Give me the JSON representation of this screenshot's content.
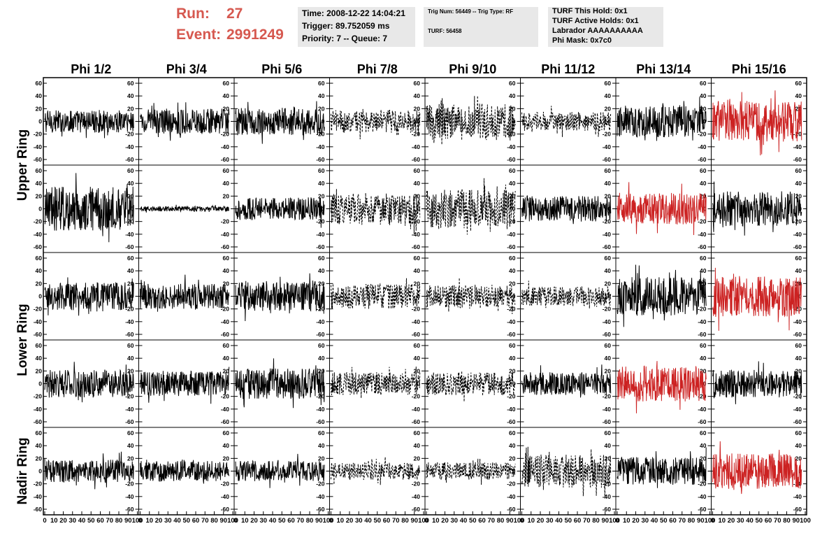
{
  "header": {
    "run_label": "Run:",
    "run_value": "27",
    "event_label": "Event:",
    "event_value": "2991249",
    "time_lines": [
      "Time: 2008-12-22 14:04:21",
      "Trigger: 89.752059 ms",
      "Priority: 7 -- Queue: 7"
    ],
    "trig_lines": [
      "Trig Num: 56449 -- Trig Type: RF",
      "TURF: 56458"
    ],
    "turf_lines": [
      "TURF This Hold: 0x1",
      "TURF Active Holds: 0x1",
      "Labrador AAAAAAAAAA",
      "Phi Mask: 0x7c0"
    ],
    "colors": {
      "run_text": "#d6584f",
      "info_bg": "#e8e8e8"
    }
  },
  "chart_data": {
    "type": "line",
    "columns": [
      "Phi 1/2",
      "Phi 3/4",
      "Phi 5/6",
      "Phi 7/8",
      "Phi 9/10",
      "Phi 11/12",
      "Phi 13/14",
      "Phi 15/16"
    ],
    "ring_labels": [
      {
        "label": "Upper Ring",
        "rows": [
          0,
          1
        ]
      },
      {
        "label": "Lower Ring",
        "rows": [
          2,
          3
        ]
      },
      {
        "label": "Nadir Ring",
        "rows": [
          4
        ]
      }
    ],
    "rows": 5,
    "xlim": [
      0,
      100
    ],
    "x_ticks": [
      0,
      10,
      20,
      30,
      40,
      50,
      60,
      70,
      80,
      90,
      100
    ],
    "x_tick_labels": [
      "0",
      "10",
      "20",
      "30",
      "40",
      "50",
      "60",
      "70",
      "80",
      "90",
      "100"
    ],
    "ylim": [
      -60,
      60
    ],
    "y_ticks": [
      -60,
      -40,
      -20,
      0,
      20,
      40,
      60
    ],
    "y_tick_labels": [
      "-60",
      "-40",
      "-20",
      "0",
      "20",
      "40",
      "60"
    ],
    "series_colors": {
      "normal": "#000000",
      "highlighted": "#cc2222"
    },
    "series_styles": [
      "solid",
      "dashed"
    ],
    "panels": [
      {
        "row": 0,
        "col": 0,
        "style": "solid",
        "color": "normal",
        "amplitude": 18
      },
      {
        "row": 0,
        "col": 1,
        "style": "solid",
        "color": "normal",
        "amplitude": 20
      },
      {
        "row": 0,
        "col": 2,
        "style": "solid",
        "color": "normal",
        "amplitude": 22
      },
      {
        "row": 0,
        "col": 3,
        "style": "dashed",
        "color": "normal",
        "amplitude": 18
      },
      {
        "row": 0,
        "col": 4,
        "style": "dashed",
        "color": "normal",
        "amplitude": 30
      },
      {
        "row": 0,
        "col": 5,
        "style": "dashed",
        "color": "normal",
        "amplitude": 15
      },
      {
        "row": 0,
        "col": 6,
        "style": "solid",
        "color": "normal",
        "amplitude": 25
      },
      {
        "row": 0,
        "col": 7,
        "style": "solid",
        "color": "highlighted",
        "amplitude": 32
      },
      {
        "row": 1,
        "col": 0,
        "style": "solid",
        "color": "normal",
        "amplitude": 35
      },
      {
        "row": 1,
        "col": 1,
        "style": "solid",
        "color": "normal",
        "amplitude": 4
      },
      {
        "row": 1,
        "col": 2,
        "style": "solid",
        "color": "normal",
        "amplitude": 18
      },
      {
        "row": 1,
        "col": 3,
        "style": "dashed",
        "color": "normal",
        "amplitude": 25
      },
      {
        "row": 1,
        "col": 4,
        "style": "dashed",
        "color": "normal",
        "amplitude": 30
      },
      {
        "row": 1,
        "col": 5,
        "style": "solid",
        "color": "normal",
        "amplitude": 20
      },
      {
        "row": 1,
        "col": 6,
        "style": "solid",
        "color": "highlighted",
        "amplitude": 25
      },
      {
        "row": 1,
        "col": 7,
        "style": "solid",
        "color": "normal",
        "amplitude": 28
      },
      {
        "row": 2,
        "col": 0,
        "style": "solid",
        "color": "normal",
        "amplitude": 22
      },
      {
        "row": 2,
        "col": 1,
        "style": "solid",
        "color": "normal",
        "amplitude": 20
      },
      {
        "row": 2,
        "col": 2,
        "style": "solid",
        "color": "normal",
        "amplitude": 24
      },
      {
        "row": 2,
        "col": 3,
        "style": "dashed",
        "color": "normal",
        "amplitude": 20
      },
      {
        "row": 2,
        "col": 4,
        "style": "dashed",
        "color": "normal",
        "amplitude": 18
      },
      {
        "row": 2,
        "col": 5,
        "style": "dashed",
        "color": "normal",
        "amplitude": 15
      },
      {
        "row": 2,
        "col": 6,
        "style": "solid",
        "color": "normal",
        "amplitude": 30
      },
      {
        "row": 2,
        "col": 7,
        "style": "solid",
        "color": "highlighted",
        "amplitude": 32
      },
      {
        "row": 3,
        "col": 0,
        "style": "solid",
        "color": "normal",
        "amplitude": 22
      },
      {
        "row": 3,
        "col": 1,
        "style": "solid",
        "color": "normal",
        "amplitude": 20
      },
      {
        "row": 3,
        "col": 2,
        "style": "solid",
        "color": "normal",
        "amplitude": 24
      },
      {
        "row": 3,
        "col": 3,
        "style": "dashed",
        "color": "normal",
        "amplitude": 18
      },
      {
        "row": 3,
        "col": 4,
        "style": "dashed",
        "color": "normal",
        "amplitude": 18
      },
      {
        "row": 3,
        "col": 5,
        "style": "solid",
        "color": "normal",
        "amplitude": 18
      },
      {
        "row": 3,
        "col": 6,
        "style": "solid",
        "color": "highlighted",
        "amplitude": 28
      },
      {
        "row": 3,
        "col": 7,
        "style": "solid",
        "color": "normal",
        "amplitude": 22
      },
      {
        "row": 4,
        "col": 0,
        "style": "solid",
        "color": "normal",
        "amplitude": 18
      },
      {
        "row": 4,
        "col": 1,
        "style": "solid",
        "color": "normal",
        "amplitude": 16
      },
      {
        "row": 4,
        "col": 2,
        "style": "solid",
        "color": "normal",
        "amplitude": 16
      },
      {
        "row": 4,
        "col": 3,
        "style": "dashed",
        "color": "normal",
        "amplitude": 14
      },
      {
        "row": 4,
        "col": 4,
        "style": "dashed",
        "color": "normal",
        "amplitude": 14
      },
      {
        "row": 4,
        "col": 5,
        "style": "dashed",
        "color": "normal",
        "amplitude": 26
      },
      {
        "row": 4,
        "col": 6,
        "style": "solid",
        "color": "normal",
        "amplitude": 22
      },
      {
        "row": 4,
        "col": 7,
        "style": "solid",
        "color": "highlighted",
        "amplitude": 28
      }
    ]
  }
}
